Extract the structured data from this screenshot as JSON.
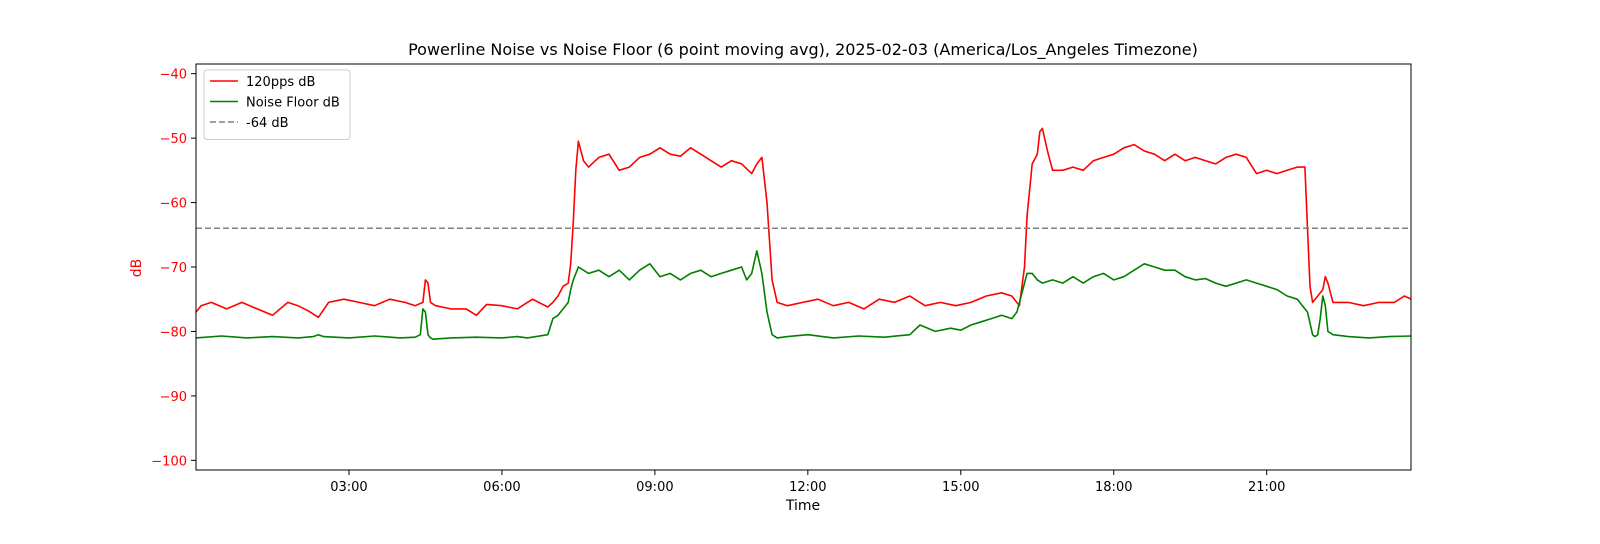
{
  "chart_data": {
    "type": "line",
    "title": "Powerline Noise vs Noise Floor (6 point moving avg), 2025-02-03 (America/Los_Angeles Timezone)",
    "xlabel": "Time",
    "ylabel": "dB",
    "xlim_hours": [
      0.0,
      23.83
    ],
    "ylim": [
      -101.5,
      -38.5
    ],
    "x_ticks": [
      {
        "hour": 3,
        "label": "03:00"
      },
      {
        "hour": 6,
        "label": "06:00"
      },
      {
        "hour": 9,
        "label": "09:00"
      },
      {
        "hour": 12,
        "label": "12:00"
      },
      {
        "hour": 15,
        "label": "15:00"
      },
      {
        "hour": 18,
        "label": "18:00"
      },
      {
        "hour": 21,
        "label": "21:00"
      }
    ],
    "y_ticks": [
      {
        "value": -40,
        "label": "−40"
      },
      {
        "value": -50,
        "label": "−50"
      },
      {
        "value": -60,
        "label": "−60"
      },
      {
        "value": -70,
        "label": "−70"
      },
      {
        "value": -80,
        "label": "−80"
      },
      {
        "value": -90,
        "label": "−90"
      },
      {
        "value": -100,
        "label": "−100"
      }
    ],
    "legend_position": "top-left",
    "ytick_color": "#ff0000",
    "series": [
      {
        "name": "120pps dB",
        "color": "#ff0000",
        "dash": false,
        "x": [
          0.0,
          0.1,
          0.3,
          0.6,
          0.9,
          1.2,
          1.5,
          1.8,
          2.0,
          2.2,
          2.4,
          2.6,
          2.9,
          3.2,
          3.5,
          3.8,
          4.1,
          4.3,
          4.45,
          4.5,
          4.55,
          4.6,
          4.7,
          5.0,
          5.3,
          5.5,
          5.7,
          6.0,
          6.3,
          6.6,
          6.9,
          7.0,
          7.1,
          7.2,
          7.3,
          7.35,
          7.4,
          7.45,
          7.5,
          7.6,
          7.7,
          7.9,
          8.1,
          8.3,
          8.5,
          8.7,
          8.9,
          9.1,
          9.3,
          9.5,
          9.7,
          9.9,
          10.1,
          10.3,
          10.5,
          10.7,
          10.9,
          11.0,
          11.1,
          11.2,
          11.3,
          11.4,
          11.6,
          11.9,
          12.2,
          12.5,
          12.8,
          13.1,
          13.4,
          13.7,
          14.0,
          14.3,
          14.6,
          14.9,
          15.2,
          15.5,
          15.8,
          16.0,
          16.15,
          16.25,
          16.3,
          16.4,
          16.5,
          16.55,
          16.6,
          16.7,
          16.8,
          17.0,
          17.2,
          17.4,
          17.6,
          17.8,
          18.0,
          18.2,
          18.4,
          18.6,
          18.8,
          19.0,
          19.2,
          19.4,
          19.6,
          19.8,
          20.0,
          20.2,
          20.4,
          20.6,
          20.8,
          21.0,
          21.2,
          21.4,
          21.6,
          21.75,
          21.8,
          21.85,
          21.9,
          22.0,
          22.1,
          22.15,
          22.2,
          22.3,
          22.6,
          22.9,
          23.2,
          23.5,
          23.7,
          23.83
        ],
        "y": [
          -77.0,
          -76.0,
          -75.5,
          -76.5,
          -75.5,
          -76.5,
          -77.5,
          -75.5,
          -76.0,
          -76.8,
          -77.8,
          -75.5,
          -75.0,
          -75.5,
          -76.0,
          -75.0,
          -75.5,
          -76.0,
          -75.5,
          -72.0,
          -72.5,
          -75.5,
          -76.0,
          -76.5,
          -76.5,
          -77.5,
          -75.8,
          -76.0,
          -76.5,
          -75.0,
          -76.2,
          -75.5,
          -74.5,
          -73.0,
          -72.5,
          -69.5,
          -63.0,
          -55.0,
          -50.5,
          -53.5,
          -54.5,
          -53.0,
          -52.5,
          -55.0,
          -54.5,
          -53.0,
          -52.5,
          -51.5,
          -52.5,
          -52.8,
          -51.5,
          -52.5,
          -53.5,
          -54.5,
          -53.5,
          -54.0,
          -55.5,
          -54.0,
          -53.0,
          -60.0,
          -72.0,
          -75.5,
          -76.0,
          -75.5,
          -75.0,
          -76.0,
          -75.5,
          -76.5,
          -75.0,
          -75.5,
          -74.5,
          -76.0,
          -75.5,
          -76.0,
          -75.5,
          -74.5,
          -74.0,
          -74.5,
          -76.0,
          -70.0,
          -62.0,
          -54.0,
          -52.5,
          -49.0,
          -48.5,
          -52.0,
          -55.0,
          -55.0,
          -54.5,
          -55.0,
          -53.5,
          -53.0,
          -52.5,
          -51.5,
          -51.0,
          -52.0,
          -52.5,
          -53.5,
          -52.5,
          -53.5,
          -53.0,
          -53.5,
          -54.0,
          -53.0,
          -52.5,
          -53.0,
          -55.5,
          -55.0,
          -55.5,
          -55.0,
          -54.5,
          -54.5,
          -64.0,
          -73.0,
          -75.5,
          -74.5,
          -73.5,
          -71.5,
          -72.5,
          -75.5,
          -75.5,
          -76.0,
          -75.5,
          -75.5,
          -74.5,
          -75.0
        ]
      },
      {
        "name": "Noise Floor dB",
        "color": "#008000",
        "dash": false,
        "x": [
          0.0,
          0.5,
          1.0,
          1.5,
          2.0,
          2.3,
          2.4,
          2.5,
          3.0,
          3.5,
          4.0,
          4.3,
          4.4,
          4.45,
          4.5,
          4.55,
          4.6,
          4.65,
          5.0,
          5.5,
          6.0,
          6.3,
          6.5,
          6.9,
          7.0,
          7.1,
          7.2,
          7.3,
          7.35,
          7.4,
          7.5,
          7.7,
          7.9,
          8.1,
          8.3,
          8.5,
          8.7,
          8.9,
          9.1,
          9.3,
          9.5,
          9.7,
          9.9,
          10.1,
          10.3,
          10.5,
          10.7,
          10.8,
          10.9,
          11.0,
          11.1,
          11.2,
          11.3,
          11.4,
          11.6,
          12.0,
          12.5,
          13.0,
          13.5,
          14.0,
          14.2,
          14.5,
          14.8,
          15.0,
          15.2,
          15.4,
          15.6,
          15.8,
          16.0,
          16.1,
          16.2,
          16.25,
          16.3,
          16.4,
          16.5,
          16.6,
          16.8,
          17.0,
          17.2,
          17.4,
          17.6,
          17.8,
          18.0,
          18.2,
          18.4,
          18.6,
          18.8,
          19.0,
          19.2,
          19.4,
          19.6,
          19.8,
          20.0,
          20.2,
          20.4,
          20.6,
          20.8,
          21.0,
          21.2,
          21.4,
          21.6,
          21.8,
          21.9,
          21.95,
          22.0,
          22.05,
          22.1,
          22.15,
          22.2,
          22.3,
          22.6,
          23.0,
          23.4,
          23.83
        ],
        "y": [
          -81.0,
          -80.7,
          -81.0,
          -80.8,
          -81.0,
          -80.8,
          -80.5,
          -80.8,
          -81.0,
          -80.7,
          -81.0,
          -80.9,
          -80.5,
          -76.5,
          -77.0,
          -80.5,
          -81.0,
          -81.2,
          -81.0,
          -80.9,
          -81.0,
          -80.8,
          -81.0,
          -80.5,
          -78.0,
          -77.5,
          -76.5,
          -75.5,
          -73.5,
          -72.0,
          -70.0,
          -71.0,
          -70.5,
          -71.5,
          -70.5,
          -72.0,
          -70.5,
          -69.5,
          -71.5,
          -71.0,
          -72.0,
          -71.0,
          -70.5,
          -71.5,
          -71.0,
          -70.5,
          -70.0,
          -72.0,
          -71.0,
          -67.5,
          -71.0,
          -77.0,
          -80.5,
          -81.0,
          -80.8,
          -80.5,
          -81.0,
          -80.7,
          -80.9,
          -80.5,
          -79.0,
          -80.0,
          -79.5,
          -79.8,
          -79.0,
          -78.5,
          -78.0,
          -77.5,
          -78.0,
          -77.0,
          -74.0,
          -72.5,
          -71.0,
          -71.0,
          -72.0,
          -72.5,
          -72.0,
          -72.5,
          -71.5,
          -72.5,
          -71.5,
          -71.0,
          -72.0,
          -71.5,
          -70.5,
          -69.5,
          -70.0,
          -70.5,
          -70.5,
          -71.5,
          -72.0,
          -71.8,
          -72.5,
          -73.0,
          -72.5,
          -72.0,
          -72.5,
          -73.0,
          -73.5,
          -74.5,
          -75.0,
          -77.0,
          -80.5,
          -80.8,
          -80.5,
          -78.0,
          -74.5,
          -76.0,
          -80.0,
          -80.5,
          -80.8,
          -81.0,
          -80.8,
          -80.7
        ]
      },
      {
        "name": "-64 dB",
        "color": "#808080",
        "dash": true,
        "x": [
          0.0,
          23.83
        ],
        "y": [
          -64,
          -64
        ]
      }
    ]
  }
}
